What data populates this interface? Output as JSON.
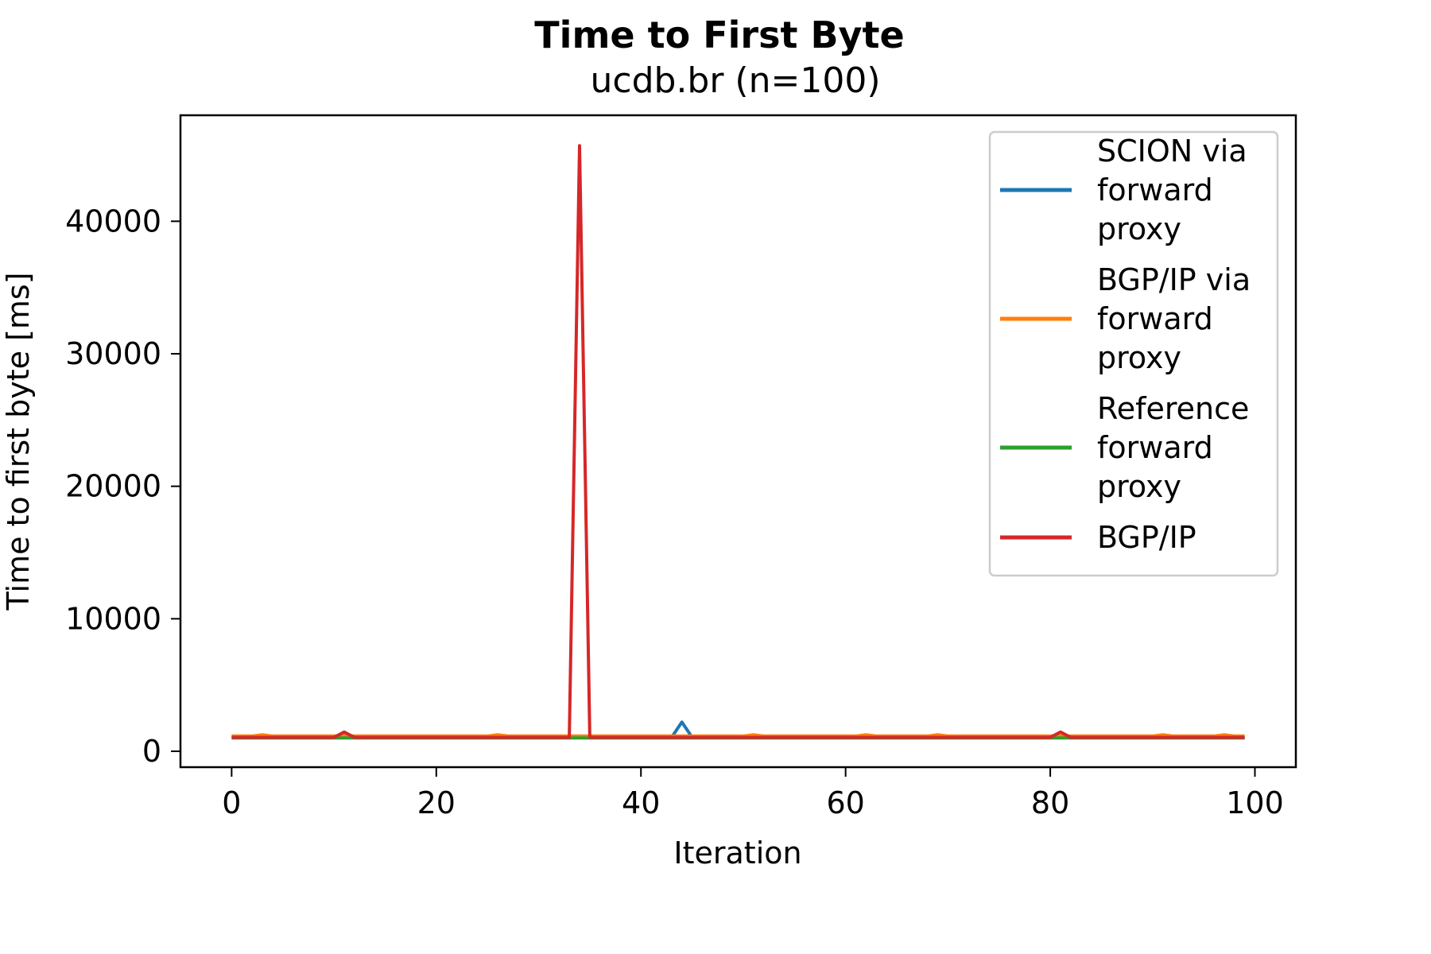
{
  "chart_data": {
    "type": "line",
    "title": "Time to First Byte",
    "subtitle": "ucdb.br (n=100)",
    "xlabel": "Iteration",
    "ylabel": "Time to first byte [ms]",
    "xlim": [
      -5,
      104
    ],
    "ylim": [
      -1200,
      48000
    ],
    "xticks": [
      0,
      20,
      40,
      60,
      80,
      100
    ],
    "yticks": [
      0,
      10000,
      20000,
      30000,
      40000
    ],
    "grid": false,
    "legend_position": "top-right",
    "series": [
      {
        "name": "SCION via forward proxy",
        "label_lines": [
          "SCION via",
          "forward",
          "proxy"
        ],
        "color": "#1f77b4",
        "baseline": 1050,
        "points": [
          [
            43,
            1050
          ],
          [
            44,
            2200
          ],
          [
            45,
            1050
          ]
        ]
      },
      {
        "name": "BGP/IP via forward proxy",
        "label_lines": [
          "BGP/IP via",
          "forward",
          "proxy"
        ],
        "color": "#ff7f0e",
        "baseline": 1150,
        "points": [
          [
            3,
            1250
          ],
          [
            26,
            1250
          ],
          [
            51,
            1250
          ],
          [
            62,
            1250
          ],
          [
            69,
            1250
          ],
          [
            91,
            1250
          ],
          [
            97,
            1250
          ]
        ]
      },
      {
        "name": "Reference forward proxy",
        "label_lines": [
          "Reference",
          "forward",
          "proxy"
        ],
        "color": "#2ca02c",
        "baseline": 1000,
        "points": [
          [
            11,
            1000
          ],
          [
            34,
            1000
          ],
          [
            81,
            1000
          ]
        ]
      },
      {
        "name": "BGP/IP",
        "label_lines": [
          "BGP/IP"
        ],
        "color": "#d62728",
        "baseline": 1050,
        "points": [
          [
            10,
            1050
          ],
          [
            11,
            1450
          ],
          [
            12,
            1050
          ],
          [
            33,
            1050
          ],
          [
            34,
            45700
          ],
          [
            35,
            1050
          ],
          [
            80,
            1050
          ],
          [
            81,
            1450
          ],
          [
            82,
            1050
          ]
        ]
      }
    ]
  }
}
